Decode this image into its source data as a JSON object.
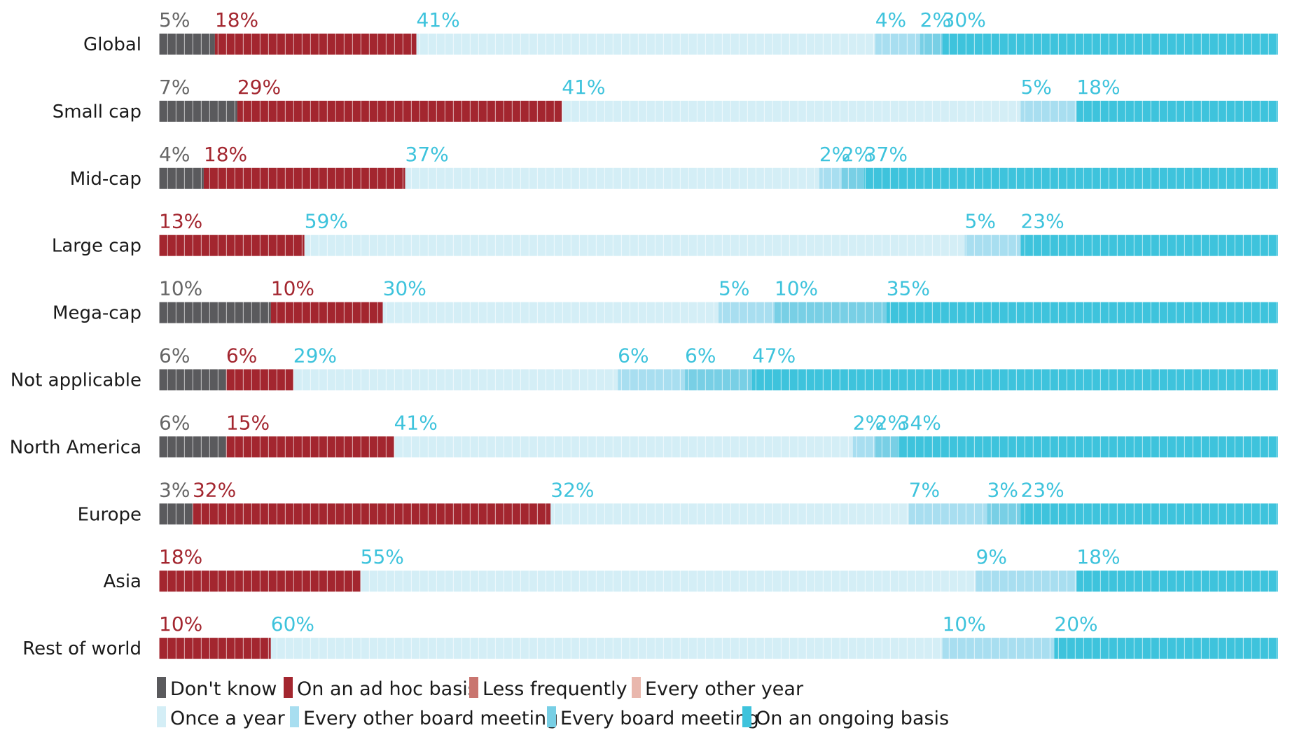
{
  "chart_data": {
    "type": "bar",
    "orientation": "horizontal",
    "stacked": true,
    "normalized": true,
    "categories": [
      "Global",
      "Small cap",
      "Mid-cap",
      "Large cap",
      "Mega-cap",
      "Not applicable",
      "North America",
      "Europe",
      "Asia",
      "Rest of world"
    ],
    "series": [
      {
        "name": "Don't know",
        "color": "#5a5a5d",
        "values": [
          5,
          7,
          4,
          0,
          10,
          6,
          6,
          3,
          0,
          0
        ]
      },
      {
        "name": "On an ad hoc basis",
        "color": "#a3262f",
        "values": [
          18,
          29,
          18,
          13,
          10,
          6,
          15,
          32,
          18,
          10
        ]
      },
      {
        "name": "Less frequently",
        "color": "#c9756f",
        "values": [
          0,
          0,
          0,
          0,
          0,
          0,
          0,
          0,
          0,
          0
        ]
      },
      {
        "name": "Every other year",
        "color": "#e9b7ad",
        "values": [
          0,
          0,
          0,
          0,
          0,
          0,
          0,
          0,
          0,
          0
        ]
      },
      {
        "name": "Once a year",
        "color": "#d4eef6",
        "values": [
          41,
          41,
          37,
          59,
          30,
          29,
          41,
          32,
          55,
          60
        ]
      },
      {
        "name": "Every other board meeting",
        "color": "#a8def0",
        "values": [
          4,
          5,
          2,
          5,
          5,
          6,
          2,
          7,
          9,
          10
        ]
      },
      {
        "name": "Every board meeting",
        "color": "#78cfe5",
        "values": [
          2,
          0,
          2,
          0,
          10,
          6,
          2,
          3,
          0,
          0
        ]
      },
      {
        "name": "On an ongoing basis",
        "color": "#3ec3dc",
        "values": [
          30,
          18,
          37,
          23,
          35,
          47,
          34,
          23,
          18,
          20
        ]
      }
    ],
    "value_labels": [
      [
        "5%",
        "18%",
        "",
        "",
        "41%",
        "4%",
        "2%",
        "30%"
      ],
      [
        "7%",
        "29%",
        "",
        "",
        "41%",
        "5%",
        "",
        "18%"
      ],
      [
        "4%",
        "18%",
        "",
        "",
        "37%",
        "2%",
        "2%",
        "37%"
      ],
      [
        "",
        "13%",
        "",
        "",
        "59%",
        "5%",
        "",
        "23%"
      ],
      [
        "10%",
        "10%",
        "",
        "",
        "30%",
        "5%",
        "10%",
        "35%"
      ],
      [
        "6%",
        "6%",
        "",
        "",
        "29%",
        "6%",
        "6%",
        "47%"
      ],
      [
        "6%",
        "15%",
        "",
        "",
        "41%",
        "2%",
        "2%",
        "34%"
      ],
      [
        "3%",
        "32%",
        "",
        "",
        "32%",
        "7%",
        "3%",
        "23%"
      ],
      [
        "",
        "18%",
        "",
        "",
        "55%",
        "9%",
        "",
        "18%"
      ],
      [
        "",
        "10%",
        "",
        "",
        "60%",
        "10%",
        "",
        "20%"
      ]
    ],
    "label_colors": {
      "dark": "#666666",
      "red": "#a3262f",
      "blue": "#3ec3dc"
    },
    "legend_position": "bottom-left",
    "title": "",
    "xlabel": "",
    "ylabel": "",
    "grid": false
  }
}
